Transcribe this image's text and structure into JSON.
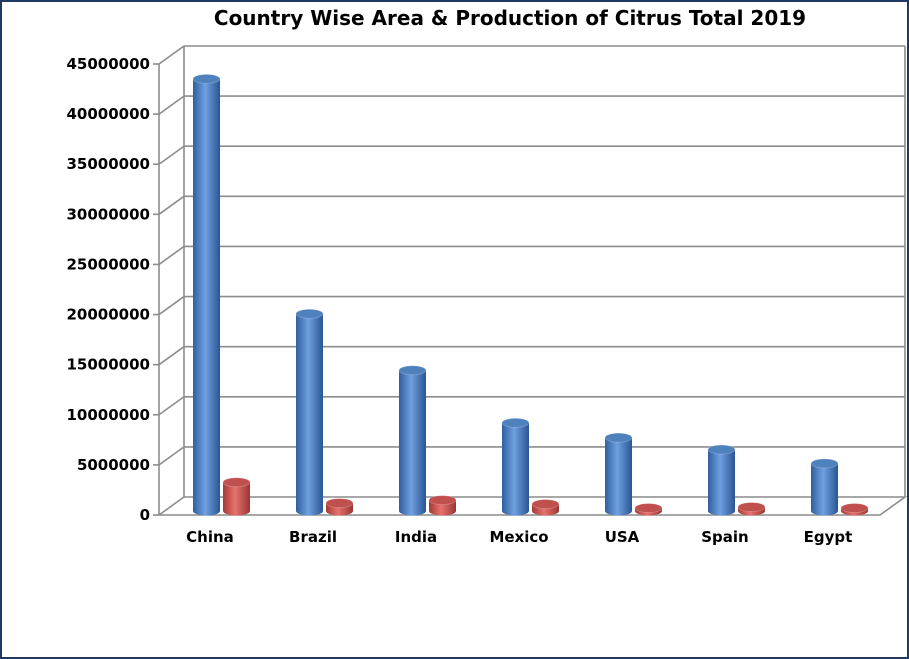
{
  "chart_data": {
    "type": "bar",
    "title": "Country Wise Area & Production of Citrus Total 2019",
    "xlabel": "",
    "ylabel": "",
    "categories": [
      "China",
      "Brazil",
      "India",
      "Mexico",
      "USA",
      "Spain",
      "Egypt"
    ],
    "series": [
      {
        "values": [
          43600000,
          19900000,
          14200000,
          8900000,
          7400000,
          6200000,
          4800000
        ],
        "color": "#4f81bd"
      },
      {
        "values": [
          2900000,
          800000,
          1100000,
          700000,
          300000,
          400000,
          300000
        ],
        "color": "#c0504d"
      }
    ],
    "ylim": [
      0,
      45000000
    ],
    "yticks": [
      "0",
      "5000000",
      "10000000",
      "15000000",
      "20000000",
      "25000000",
      "30000000",
      "35000000",
      "40000000",
      "45000000"
    ],
    "grid": true,
    "legend": "none",
    "style": "3d-cylinder"
  }
}
